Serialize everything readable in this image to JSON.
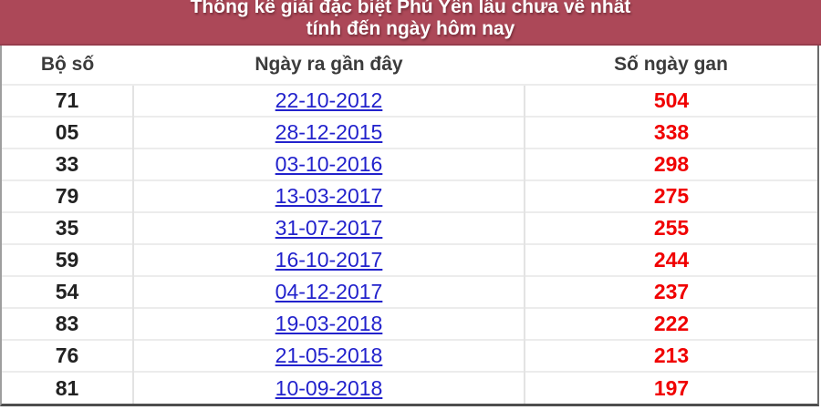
{
  "title": {
    "line1": "Thống kê giải đặc biệt Phú Yên lâu chưa về nhất",
    "line2": "tính đến ngày hôm nay"
  },
  "table": {
    "columns": [
      "Bộ số",
      "Ngày ra gần đây",
      "Số ngày gan"
    ],
    "rows": [
      {
        "bo_so": "71",
        "ngay_ra": "22-10-2012",
        "so_ngay_gan": "504"
      },
      {
        "bo_so": "05",
        "ngay_ra": "28-12-2015",
        "so_ngay_gan": "338"
      },
      {
        "bo_so": "33",
        "ngay_ra": "03-10-2016",
        "so_ngay_gan": "298"
      },
      {
        "bo_so": "79",
        "ngay_ra": "13-03-2017",
        "so_ngay_gan": "275"
      },
      {
        "bo_so": "35",
        "ngay_ra": "31-07-2017",
        "so_ngay_gan": "255"
      },
      {
        "bo_so": "59",
        "ngay_ra": "16-10-2017",
        "so_ngay_gan": "244"
      },
      {
        "bo_so": "54",
        "ngay_ra": "04-12-2017",
        "so_ngay_gan": "237"
      },
      {
        "bo_so": "83",
        "ngay_ra": "19-03-2018",
        "so_ngay_gan": "222"
      },
      {
        "bo_so": "76",
        "ngay_ra": "21-05-2018",
        "so_ngay_gan": "213"
      },
      {
        "bo_so": "81",
        "ngay_ra": "10-09-2018",
        "so_ngay_gan": "197"
      }
    ]
  },
  "colors": {
    "accent": "#ac4858",
    "link": "#2222cc",
    "gan_number": "#f00000",
    "header_text": "#3b3b3b",
    "title_text": "#ffffff"
  }
}
